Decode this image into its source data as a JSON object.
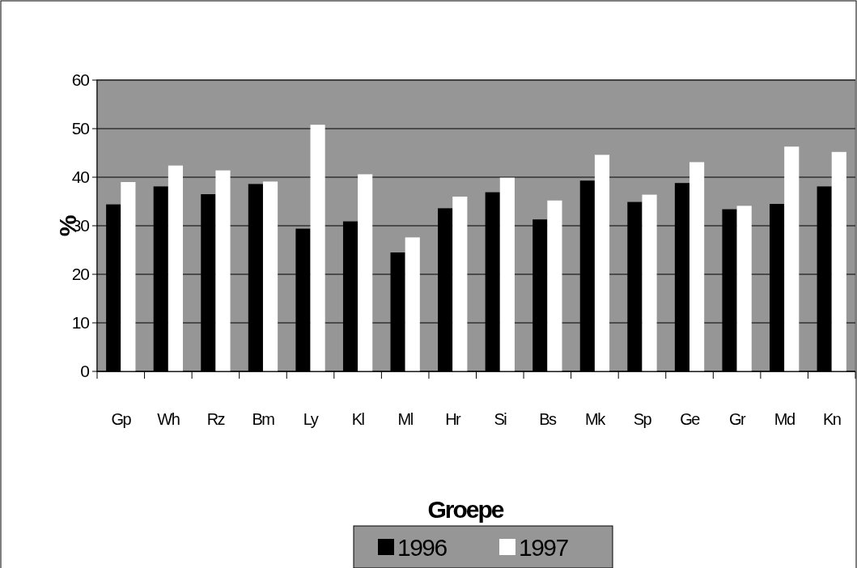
{
  "chart_data": {
    "type": "bar",
    "xlabel": "Groepe",
    "ylabel": "%",
    "categories": [
      "Gp",
      "Wh",
      "Rz",
      "Bm",
      "Ly",
      "Kl",
      "Ml",
      "Hr",
      "Si",
      "Bs",
      "Mk",
      "Sp",
      "Ge",
      "Gr",
      "Md",
      "Kn"
    ],
    "series": [
      {
        "name": "1996",
        "color": "#000000",
        "values": [
          34.4,
          38.1,
          36.5,
          38.6,
          29.4,
          30.9,
          24.5,
          33.6,
          36.9,
          31.3,
          39.3,
          34.9,
          38.8,
          33.4,
          34.5,
          38.1
        ]
      },
      {
        "name": "1997",
        "color": "#ffffff",
        "values": [
          39.0,
          42.4,
          41.4,
          39.1,
          50.8,
          40.6,
          27.6,
          36.0,
          39.9,
          35.2,
          44.6,
          36.4,
          43.1,
          34.1,
          46.3,
          45.2
        ]
      }
    ],
    "ylim": [
      0,
      60
    ],
    "yticks": [
      0,
      10,
      20,
      30,
      40,
      50,
      60
    ],
    "grid": "y",
    "legend": "bottom"
  }
}
